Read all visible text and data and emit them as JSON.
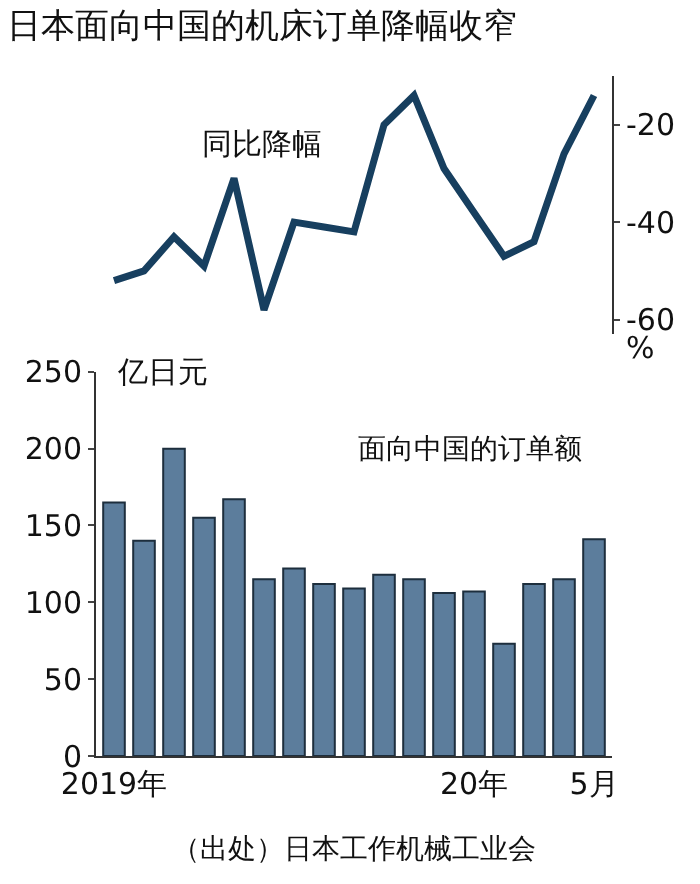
{
  "chart_data": [
    {
      "type": "line",
      "title": "日本面向中国的机床订单降幅收窄",
      "categories": [
        null,
        null,
        null,
        null,
        null,
        null,
        null,
        null,
        null,
        null,
        null,
        null,
        null,
        null,
        null,
        null,
        null
      ],
      "series": [
        {
          "name": "同比降幅",
          "color": "#173f5f",
          "values": [
            -52,
            -50,
            -43,
            -49,
            -31,
            -58,
            -40,
            -41,
            -42,
            -20,
            -14,
            -29,
            -38,
            -47,
            -44,
            -26,
            -14
          ]
        }
      ],
      "ylabel": "%",
      "ylim": [
        -63,
        -10
      ],
      "yticks": [
        -20,
        -40,
        -60
      ],
      "tick_labels": "y",
      "grid": false,
      "legend": false
    },
    {
      "type": "bar",
      "categories": [
        "2019年",
        null,
        null,
        null,
        null,
        null,
        null,
        null,
        null,
        null,
        null,
        null,
        "20年",
        null,
        null,
        null,
        "5月"
      ],
      "series": [
        {
          "name": "面向中国的订单额",
          "color": "#5c7d9c",
          "values": [
            165,
            140,
            200,
            155,
            167,
            115,
            122,
            112,
            109,
            118,
            115,
            106,
            107,
            73,
            112,
            115,
            141
          ]
        }
      ],
      "ylabel": "亿日元",
      "ylim": [
        0,
        250
      ],
      "yticks": [
        0,
        50,
        100,
        150,
        200,
        250
      ],
      "annotations": [
        "（出处）日本工作机械工业会"
      ],
      "grid": false,
      "legend": false
    }
  ]
}
